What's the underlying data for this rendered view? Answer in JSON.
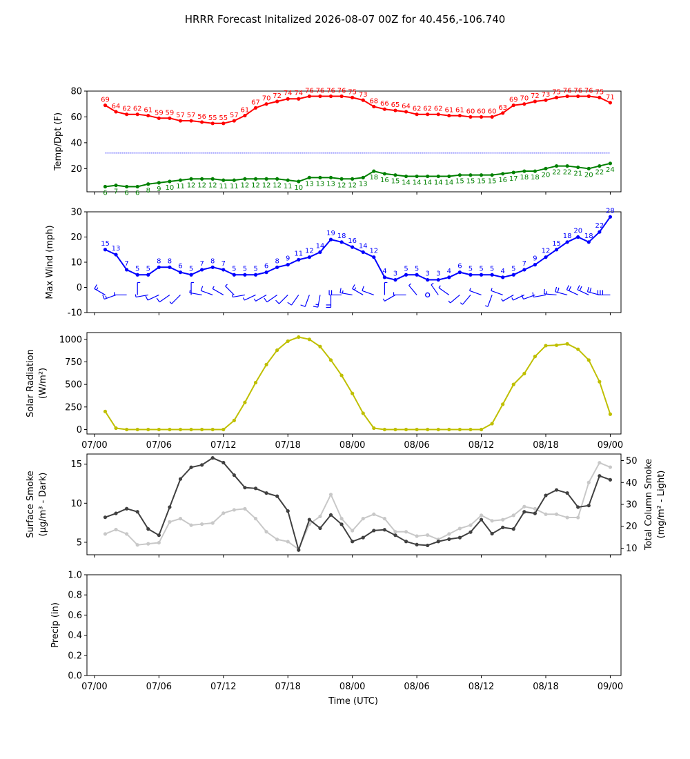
{
  "title": "HRRR Forecast Initalized 2026-08-07 00Z for 40.456,-106.740",
  "colors": {
    "temp": "#ff0000",
    "dewpoint": "#008000",
    "wind": "#0000ff",
    "solar": "#bfbf00",
    "smoke_surface": "#404040",
    "smoke_column": "#c8c8c8",
    "freezing_line": "#0000ff"
  },
  "x_axis": {
    "label": "Time (UTC)",
    "start": "2026-08-07 01:00",
    "end": "2026-08-09 00:00",
    "tick_labels": [
      "07/00",
      "07/06",
      "07/12",
      "07/18",
      "08/00",
      "08/06",
      "08/12",
      "08/18",
      "09/00"
    ]
  },
  "chart_data": [
    {
      "type": "line",
      "ylabel": "Temp/Dpt (F)",
      "ylim": [
        2,
        80
      ],
      "yticks": [
        20,
        40,
        60,
        80
      ],
      "freezing_line": 32,
      "series": [
        {
          "role": "temperature",
          "values": [
            69,
            64,
            62,
            62,
            61,
            59,
            59,
            57,
            57,
            56,
            55,
            55,
            57,
            61,
            67,
            70,
            72,
            74,
            74,
            76,
            76,
            76,
            76,
            75,
            73,
            68,
            66,
            65,
            64,
            62,
            62,
            62,
            61,
            61,
            60,
            60,
            60,
            63,
            69,
            70,
            72,
            73,
            75,
            76,
            76,
            76,
            75,
            71
          ]
        },
        {
          "role": "dewpoint",
          "values": [
            6,
            7,
            6,
            6,
            8,
            9,
            10,
            11,
            12,
            12,
            12,
            11,
            11,
            12,
            12,
            12,
            12,
            11,
            10,
            13,
            13,
            13,
            12,
            12,
            13,
            18,
            16,
            15,
            14,
            14,
            14,
            14,
            14,
            15,
            15,
            15,
            15,
            16,
            17,
            18,
            18,
            20,
            22,
            22,
            21,
            20,
            22,
            24
          ]
        }
      ]
    },
    {
      "type": "line",
      "ylabel": "Max Wind (mph)",
      "ylim": [
        -10,
        30
      ],
      "yticks": [
        -10,
        0,
        10,
        20,
        30
      ],
      "series": [
        {
          "role": "max_wind",
          "values": [
            15,
            13,
            7,
            5,
            5,
            8,
            8,
            6,
            5,
            7,
            8,
            7,
            5,
            5,
            5,
            6,
            8,
            9,
            11,
            12,
            14,
            19,
            18,
            16,
            14,
            12,
            4,
            3,
            5,
            5,
            3,
            3,
            4,
            6,
            5,
            5,
            5,
            4,
            5,
            7,
            9,
            12,
            15,
            18,
            20,
            18,
            22,
            28
          ]
        }
      ],
      "barbs": {
        "level": -3,
        "direction_deg": [
          300,
          250,
          270,
          0,
          260,
          245,
          235,
          225,
          0,
          280,
          290,
          300,
          315,
          260,
          245,
          240,
          235,
          225,
          215,
          200,
          190,
          180,
          270,
          280,
          300,
          290,
          0,
          240,
          270,
          320,
          0,
          325,
          305,
          230,
          220,
          290,
          200,
          290,
          240,
          245,
          250,
          260,
          275,
          285,
          295,
          295,
          285,
          270
        ]
      }
    },
    {
      "type": "line",
      "ylabel": "Solar Radiation",
      "ylabel_units": "(W/m²)",
      "ylim": [
        -50,
        1075
      ],
      "yticks": [
        0,
        250,
        500,
        750,
        1000
      ],
      "series": [
        {
          "role": "solar_radiation",
          "values": [
            200,
            15,
            0,
            0,
            0,
            0,
            0,
            0,
            0,
            0,
            0,
            0,
            100,
            300,
            520,
            720,
            880,
            980,
            1025,
            1000,
            920,
            770,
            600,
            400,
            180,
            15,
            0,
            0,
            0,
            0,
            0,
            0,
            0,
            0,
            0,
            0,
            65,
            280,
            500,
            620,
            810,
            930,
            935,
            950,
            890,
            770,
            530,
            170
          ]
        }
      ]
    },
    {
      "type": "line",
      "ylabel": "Surface Smoke",
      "ylabel_units": "(μg/m³ - Dark)",
      "ylim": [
        3.4,
        16.3
      ],
      "yticks": [
        5,
        10,
        15
      ],
      "y2label": "Total Column Smoke",
      "y2label_units": "(mg/m² - Light)",
      "y2lim": [
        7,
        53
      ],
      "y2ticks": [
        10,
        20,
        30,
        40,
        50
      ],
      "series": [
        {
          "role": "surface_smoke",
          "axis": "left",
          "values": [
            8.2,
            8.7,
            9.3,
            8.9,
            6.7,
            5.9,
            9.5,
            13.1,
            14.6,
            14.9,
            15.8,
            15.2,
            13.6,
            12.0,
            11.9,
            11.3,
            10.9,
            9.0,
            4.0,
            7.9,
            6.8,
            8.5,
            7.3,
            5.1,
            5.6,
            6.5,
            6.6,
            5.9,
            5.1,
            4.7,
            4.6,
            5.1,
            5.4,
            5.6,
            6.3,
            7.9,
            6.1,
            6.9,
            6.7,
            8.9,
            8.7,
            11.0,
            11.7,
            11.3,
            9.5,
            9.7,
            13.5,
            13.0
          ]
        },
        {
          "role": "total_column_smoke",
          "axis": "right",
          "values": [
            16.5,
            18.5,
            16.5,
            11.5,
            12,
            12.5,
            22,
            23.5,
            20.5,
            21,
            21.5,
            26,
            27.5,
            28,
            23.5,
            17.5,
            14,
            13,
            9.5,
            21,
            24.5,
            34.5,
            23.5,
            18,
            23.5,
            25.5,
            23.5,
            17.5,
            17.5,
            15.5,
            16,
            14,
            16.5,
            19,
            20.5,
            25,
            22.5,
            23,
            25,
            29,
            28,
            25.5,
            25.5,
            24,
            24,
            40,
            49,
            47
          ]
        }
      ]
    },
    {
      "type": "line",
      "ylabel": "Precip (in)",
      "ylim": [
        0,
        1
      ],
      "yticks": [
        0.0,
        0.2,
        0.4,
        0.6,
        0.8,
        1.0
      ],
      "series": []
    }
  ]
}
